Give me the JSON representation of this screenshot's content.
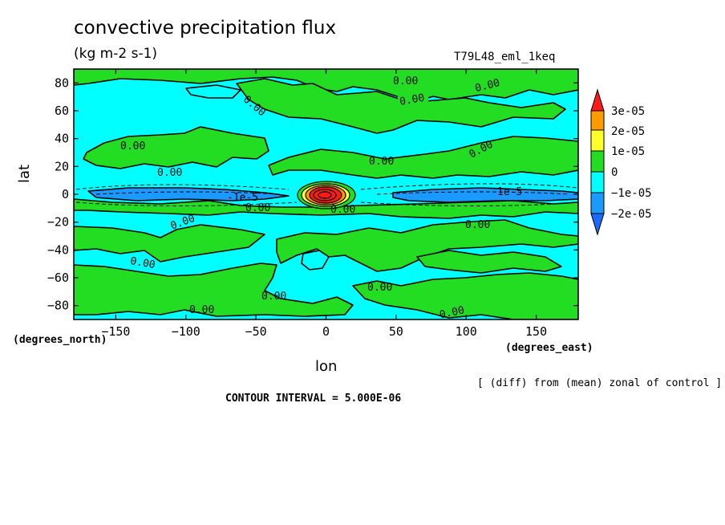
{
  "chart_data": {
    "type": "heatmap",
    "title": "convective precipitation flux",
    "units": "(kg m-2 s-1)",
    "run_label": "T79L48_eml_1keq",
    "ylabel": "lat",
    "xlabel": "lon",
    "ylabel_unit": "(degrees_north)",
    "xlabel_unit": "(degrees_east)",
    "note": "[ (diff) from (mean) zonal of control ]",
    "contour_interval": "CONTOUR INTERVAL = 5.000E-06",
    "xlim": [
      -180,
      180
    ],
    "ylim": [
      -90,
      90
    ],
    "x_ticks": [
      -150,
      -100,
      -50,
      0,
      50,
      100,
      150
    ],
    "y_ticks": [
      80,
      60,
      40,
      20,
      0,
      -20,
      -40,
      -60,
      -80
    ],
    "colorbar": {
      "labels": [
        "3e-05",
        "2e-05",
        "1e-05",
        "0",
        "−1e-05",
        "−2e-05"
      ],
      "bands": [
        {
          "from": 2.5e-05,
          "color": "#ff1a1a"
        },
        {
          "from": 2e-05,
          "to": 2.5e-05,
          "color": "#ff9a00"
        },
        {
          "from": 1e-05,
          "to": 2e-05,
          "color": "#ffff2a"
        },
        {
          "from": 0,
          "to": 1e-05,
          "color": "#22dd22"
        },
        {
          "from": -1e-05,
          "to": 0,
          "color": "#00ffff"
        },
        {
          "from": -2e-05,
          "to": -1e-05,
          "color": "#1a9aff"
        },
        {
          "to": -2e-05,
          "color": "#1a6aff"
        }
      ]
    },
    "regions": [
      {
        "band": "0 to 1e-05",
        "color": "#22dd22",
        "lon": [
          -175,
          -30
        ],
        "lat": [
          12,
          35
        ],
        "label": "0.00"
      },
      {
        "band": "0 to 1e-05",
        "color": "#22dd22",
        "lon": [
          -60,
          45
        ],
        "lat": [
          45,
          90
        ],
        "label": "0.00"
      },
      {
        "band": "0 to 1e-05",
        "color": "#22dd22",
        "lon": [
          -50,
          90
        ],
        "lat": [
          -60,
          -15
        ],
        "label": "0.00"
      },
      {
        "band": "0 to 1e-05",
        "color": "#22dd22",
        "lon": [
          70,
          180
        ],
        "lat": [
          -90,
          -45
        ],
        "label": "0.00"
      },
      {
        "band": "-1e-05 to 0",
        "color": "#00ffff",
        "lon": [
          -180,
          180
        ],
        "lat": [
          -12,
          12
        ],
        "label": "-1e-5"
      },
      {
        "band": "-2e-05 to -1e-05",
        "color": "#1a9aff",
        "lon": [
          -150,
          -60
        ],
        "lat": [
          -2,
          2
        ]
      },
      {
        "band": "-2e-05 to -1e-05",
        "color": "#1a9aff",
        "lon": [
          50,
          160
        ],
        "lat": [
          -2,
          2
        ]
      },
      {
        "band": ">2.5e-05",
        "color": "#ff1a1a",
        "lon": [
          -20,
          20
        ],
        "lat": [
          -8,
          8
        ],
        "label": "0.00"
      }
    ],
    "contour_labels": [
      "0.00",
      "0.00",
      "0.00",
      "0.00",
      "0.00",
      "0.00",
      "0.00",
      "0.00",
      "0.00",
      "0.00",
      "0.00",
      "0.00",
      "-1e-5",
      "1e-5"
    ]
  }
}
